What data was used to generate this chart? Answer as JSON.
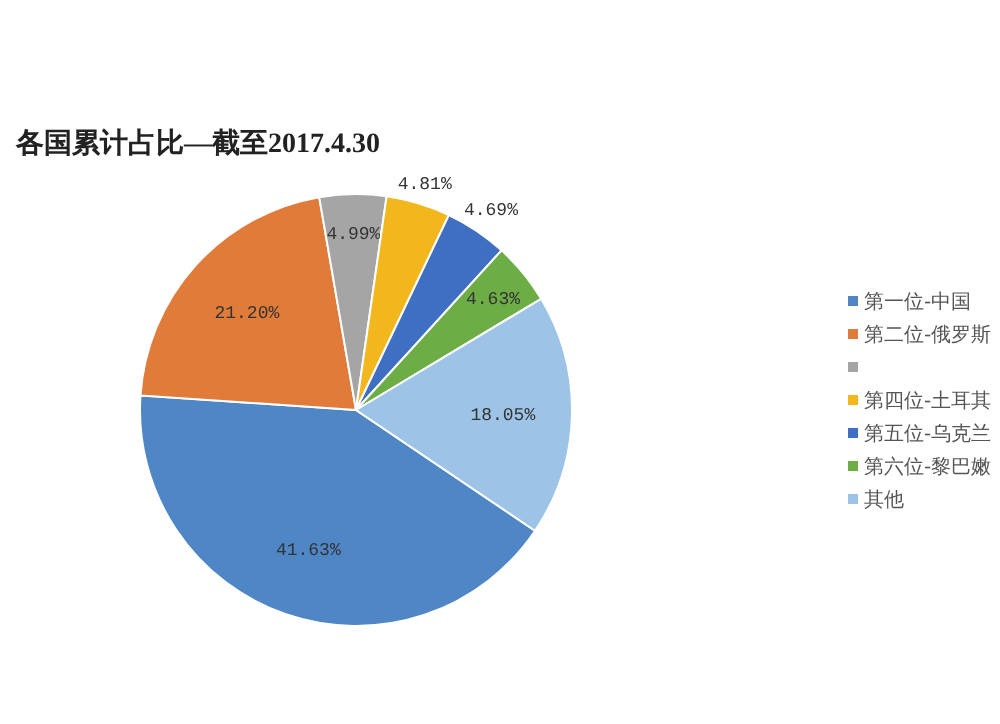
{
  "chart_data": {
    "type": "pie",
    "title": "各国累计占比—截至2017.4.30",
    "categories": [
      "第一位-中国",
      "第二位-俄罗斯",
      null,
      "第四位-土耳其",
      "第五位-乌克兰",
      "第六位-黎巴嫩",
      "其他"
    ],
    "values": [
      41.63,
      21.2,
      4.99,
      4.81,
      4.69,
      4.63,
      18.05
    ],
    "value_labels": [
      "41.63%",
      "21.20%",
      "4.99%",
      "4.81%",
      "4.69%",
      "4.63%",
      "18.05%"
    ],
    "colors": [
      "#4f86c6",
      "#e07b39",
      "#a5a5a5",
      "#f2b71d",
      "#3f6fc2",
      "#6cad45",
      "#9dc3e6"
    ],
    "legend": "right"
  }
}
